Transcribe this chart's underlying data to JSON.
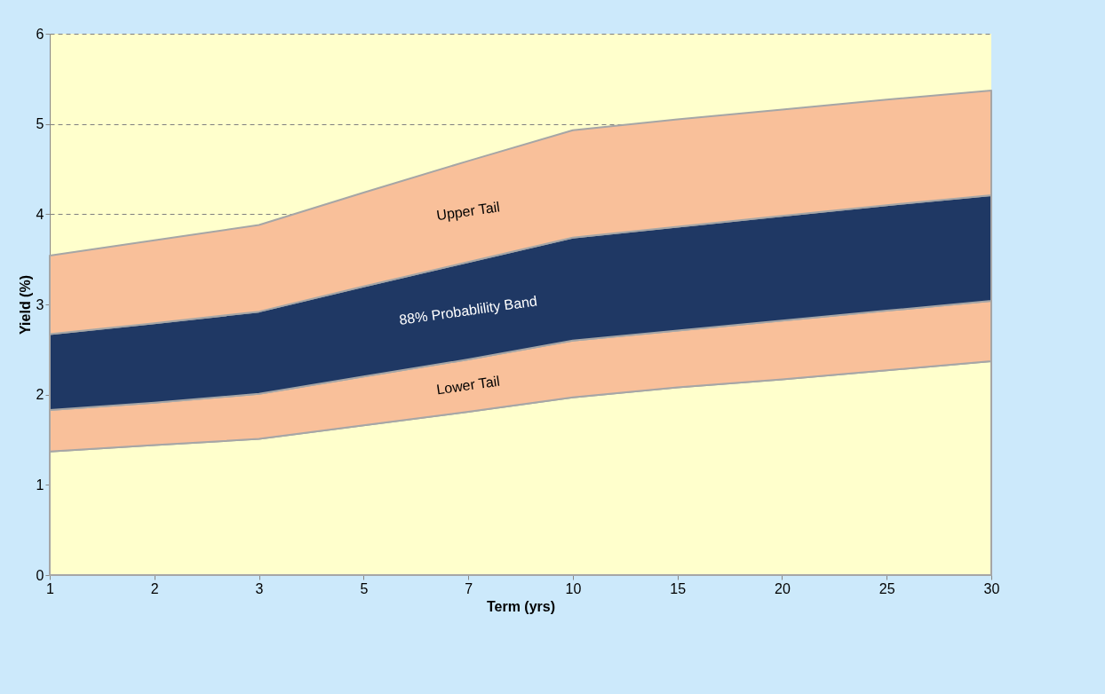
{
  "chart_data": {
    "type": "area",
    "stacked": true,
    "xlabel": "Term (yrs)",
    "ylabel": "Yield (%)",
    "categories": [
      "1",
      "2",
      "3",
      "5",
      "7",
      "10",
      "15",
      "20",
      "25",
      "30"
    ],
    "series": [
      {
        "color": "#ffffcc",
        "values": [
          1.37,
          1.44,
          1.51,
          1.66,
          1.81,
          1.97,
          2.08,
          2.17,
          2.27,
          2.37
        ]
      },
      {
        "name": "Lower Tail",
        "color": "#f9c09a",
        "values": [
          0.46,
          0.47,
          0.5,
          0.54,
          0.58,
          0.63,
          0.63,
          0.65,
          0.66,
          0.67
        ]
      },
      {
        "name": "88% Probablility Band",
        "color": "#1f3864",
        "values": [
          0.84,
          0.88,
          0.91,
          1.0,
          1.08,
          1.14,
          1.15,
          1.16,
          1.17,
          1.17
        ]
      },
      {
        "name": "Upper Tail",
        "color": "#f9c09a",
        "values": [
          0.87,
          0.92,
          0.96,
          1.04,
          1.12,
          1.19,
          1.19,
          1.18,
          1.17,
          1.16
        ]
      }
    ],
    "ylim": [
      0,
      6
    ],
    "yticks": [
      0,
      1,
      2,
      3,
      4,
      5,
      6
    ],
    "grid": "y"
  }
}
